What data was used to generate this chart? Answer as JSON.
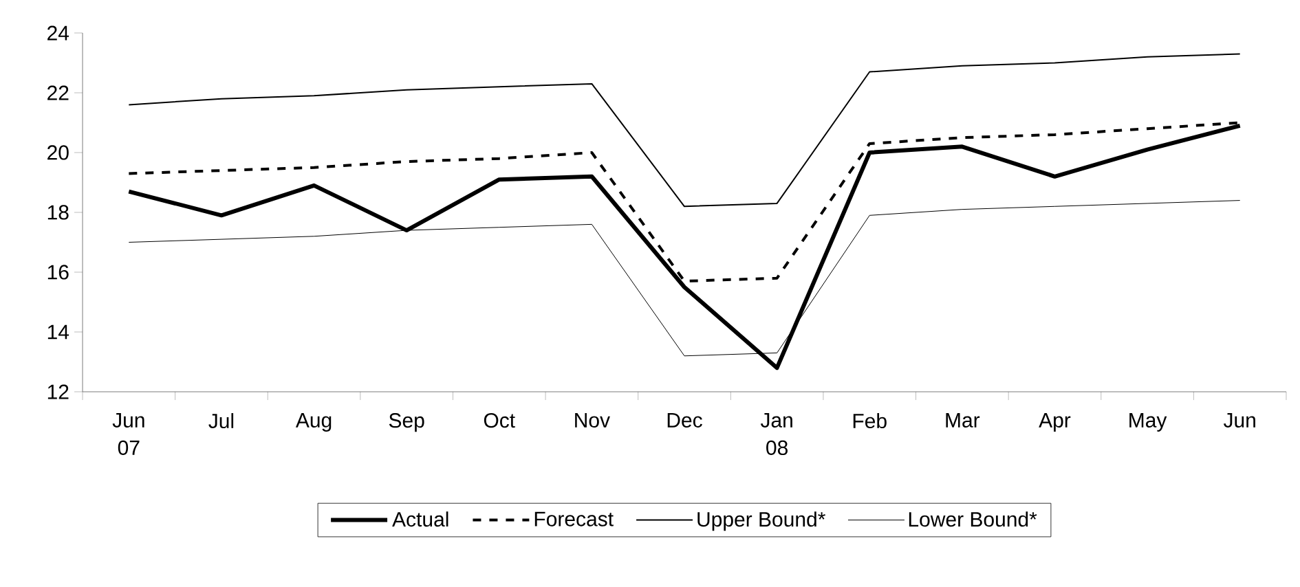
{
  "chart_data": {
    "type": "line",
    "categories": [
      "Jun 07",
      "Jul",
      "Aug",
      "Sep",
      "Oct",
      "Nov",
      "Dec",
      "Jan 08",
      "Feb",
      "Mar",
      "Apr",
      "May",
      "Jun"
    ],
    "series": [
      {
        "name": "Actual",
        "color": "#000000",
        "line_style": "solid",
        "values": [
          18.7,
          17.9,
          18.9,
          17.4,
          19.1,
          19.2,
          15.5,
          12.8,
          20.0,
          20.2,
          19.2,
          20.1,
          20.9
        ]
      },
      {
        "name": "Forecast",
        "color": "#000000",
        "line_style": "dashed",
        "values": [
          19.3,
          19.4,
          19.5,
          19.7,
          19.8,
          20.0,
          15.7,
          15.8,
          20.3,
          20.5,
          20.6,
          20.8,
          21.0
        ]
      },
      {
        "name": "Upper Bound*",
        "color": "#000000",
        "line_style": "solid",
        "values": [
          21.6,
          21.8,
          21.9,
          22.1,
          22.2,
          22.3,
          18.2,
          18.3,
          22.7,
          22.9,
          23.0,
          23.2,
          23.3
        ]
      },
      {
        "name": "Lower Bound*",
        "color": "#000000",
        "line_style": "solid",
        "values": [
          17.0,
          17.1,
          17.2,
          17.4,
          17.5,
          17.6,
          13.2,
          13.3,
          17.9,
          18.1,
          18.2,
          18.3,
          18.4
        ]
      }
    ],
    "ylim": [
      12,
      24
    ],
    "yticks": [
      12,
      14,
      16,
      18,
      20,
      22,
      24
    ],
    "grid": false,
    "legend": "bottom",
    "marker": "none"
  }
}
